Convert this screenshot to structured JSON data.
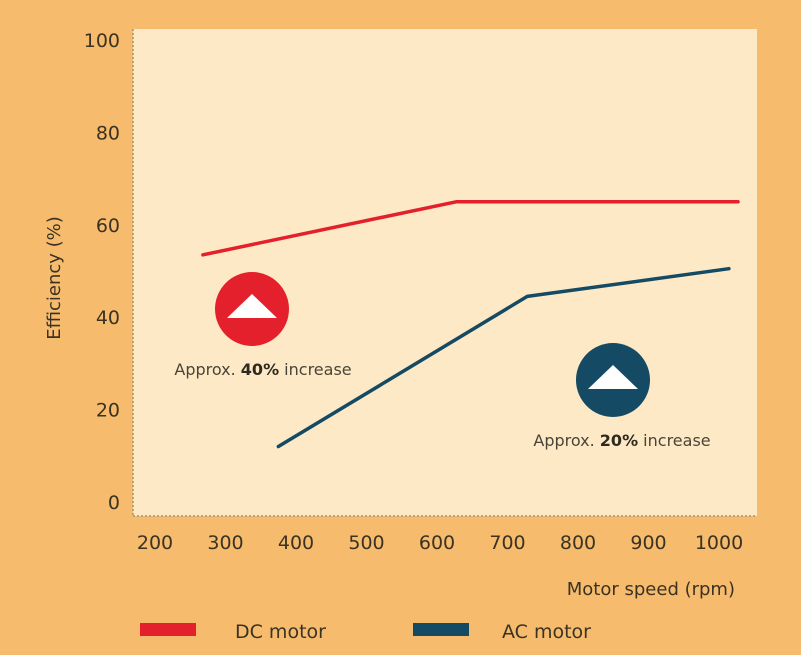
{
  "chart_data": {
    "type": "line",
    "title": "",
    "xlabel": "Motor speed (rpm)",
    "ylabel": "Efficiency (%)",
    "xlim": [
      180,
      1040
    ],
    "ylim": [
      0,
      100
    ],
    "x_ticks": [
      200,
      300,
      400,
      500,
      600,
      700,
      800,
      900,
      1000
    ],
    "y_ticks": [
      0,
      20,
      40,
      60,
      80,
      100
    ],
    "grid": false,
    "legend_position": "bottom",
    "series": [
      {
        "name": "DC motor",
        "color": "#e3202b",
        "points": [
          [
            268,
            53.5
          ],
          [
            628,
            65
          ],
          [
            1027,
            65
          ]
        ]
      },
      {
        "name": "AC motor",
        "color": "#144a63",
        "points": [
          [
            375,
            12
          ],
          [
            728,
            44.5
          ],
          [
            1014,
            50.5
          ]
        ]
      }
    ],
    "annotations": [
      {
        "name": "dc-increase",
        "prefix": "Approx. ",
        "bold": "40%",
        "suffix": " increase",
        "color": "#e3202b",
        "x": 330,
        "y": 41
      },
      {
        "name": "ac-increase",
        "prefix": "Approx. ",
        "bold": "20%",
        "suffix": "  increase",
        "color": "#144a63",
        "x": 842,
        "y": 26
      }
    ]
  }
}
